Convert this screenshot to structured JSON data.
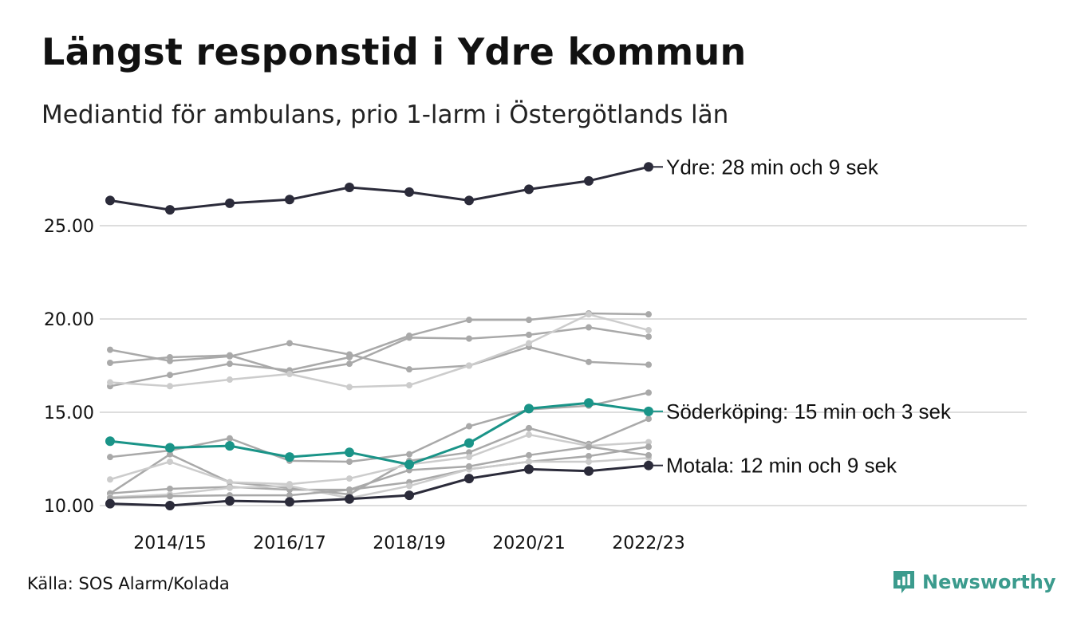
{
  "title": "Längst responstid i Ydre kommun",
  "subtitle": "Mediantid för ambulans, prio 1-larm i Östergötlands län",
  "source": "Källa: SOS Alarm/Kolada",
  "brand": "Newsworthy",
  "colors": {
    "highlight_dark": "#2b2b3a",
    "highlight_teal": "#1a9488",
    "grey_dark": "#a9a9a9",
    "grey_light": "#cccccc",
    "grid": "#dddddd",
    "brand": "#3b9b8d"
  },
  "chart_data": {
    "type": "line",
    "x": [
      "2013/14",
      "2014/15",
      "2015/16",
      "2016/17",
      "2017/18",
      "2018/19",
      "2019/20",
      "2020/21",
      "2021/22",
      "2022/23"
    ],
    "x_tick_labels": [
      "2014/15",
      "2016/17",
      "2018/19",
      "2020/21",
      "2022/23"
    ],
    "y_ticks": [
      "10.00",
      "15.00",
      "20.00",
      "25.00"
    ],
    "ylim": [
      10,
      28.5
    ],
    "grid": true,
    "series": [
      {
        "name": "Ydre",
        "role": "dark",
        "values": [
          26.35,
          25.85,
          26.2,
          26.4,
          27.05,
          26.8,
          26.35,
          26.95,
          27.4,
          28.15
        ]
      },
      {
        "name": "Söderköping",
        "role": "teal",
        "values": [
          13.45,
          13.1,
          13.2,
          12.6,
          12.85,
          12.2,
          13.35,
          15.2,
          15.5,
          15.05
        ]
      },
      {
        "name": "Motala",
        "role": "dark",
        "values": [
          10.1,
          10.0,
          10.25,
          10.2,
          10.35,
          10.55,
          11.45,
          11.95,
          11.85,
          12.15
        ]
      },
      {
        "name": "",
        "role": "grey",
        "values": [
          18.35,
          17.75,
          18.0,
          18.7,
          18.1,
          17.3,
          17.5,
          18.5,
          17.7,
          17.55
        ]
      },
      {
        "name": "",
        "role": "grey",
        "values": [
          17.65,
          17.95,
          18.05,
          17.1,
          17.6,
          19.0,
          18.95,
          19.15,
          19.55,
          19.05
        ]
      },
      {
        "name": "",
        "role": "grey",
        "values": [
          16.4,
          17.0,
          17.6,
          17.25,
          17.95,
          19.1,
          19.95,
          19.95,
          20.3,
          20.25
        ]
      },
      {
        "name": "",
        "role": "grey_light",
        "values": [
          16.6,
          16.4,
          16.75,
          17.05,
          16.35,
          16.45,
          17.5,
          18.7,
          20.25,
          19.4
        ]
      },
      {
        "name": "",
        "role": "grey",
        "values": [
          12.6,
          12.95,
          13.6,
          12.4,
          12.35,
          12.75,
          14.25,
          15.15,
          15.35,
          16.05
        ]
      },
      {
        "name": "",
        "role": "grey",
        "values": [
          10.65,
          12.75,
          11.25,
          10.95,
          10.6,
          12.4,
          12.85,
          14.15,
          13.3,
          14.65
        ]
      },
      {
        "name": "",
        "role": "grey_light",
        "values": [
          11.4,
          12.35,
          11.25,
          11.15,
          11.45,
          12.2,
          12.6,
          13.8,
          13.2,
          13.4
        ]
      },
      {
        "name": "",
        "role": "grey",
        "values": [
          10.65,
          10.9,
          11.0,
          10.85,
          10.85,
          11.25,
          11.95,
          12.35,
          12.65,
          13.15
        ]
      },
      {
        "name": "",
        "role": "grey_light",
        "values": [
          10.45,
          10.6,
          10.95,
          11.05,
          10.4,
          11.05,
          11.95,
          12.35,
          12.35,
          12.55
        ]
      },
      {
        "name": "",
        "role": "grey",
        "values": [
          10.4,
          10.5,
          10.55,
          10.55,
          10.85,
          11.9,
          12.1,
          12.7,
          13.15,
          12.7
        ]
      }
    ],
    "annotations": [
      {
        "series": "Ydre",
        "text": "Ydre: 28 min och 9 sek"
      },
      {
        "series": "Söderköping",
        "text": "Söderköping: 15 min och 3 sek"
      },
      {
        "series": "Motala",
        "text": "Motala: 12 min och 9 sek"
      }
    ]
  }
}
